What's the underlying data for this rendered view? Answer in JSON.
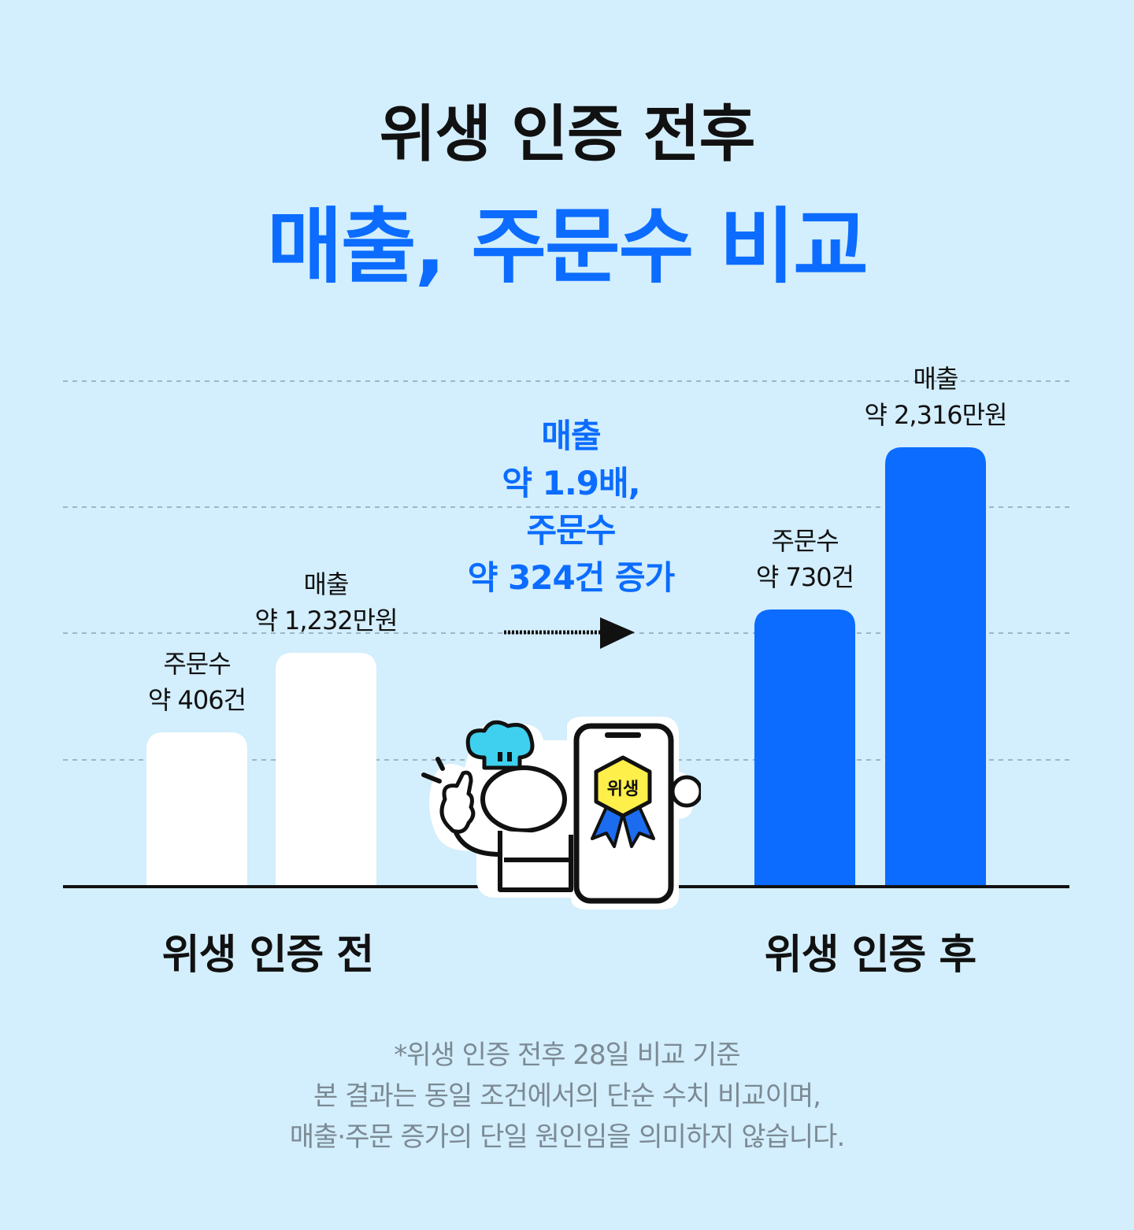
{
  "header": {
    "title_line1": "위생 인증 전후",
    "title_line2": "매출, 주문수 비교"
  },
  "colors": {
    "background": "#d3eefc",
    "accent_blue": "#0b6cff",
    "bar_before": "#ffffff",
    "text_dark": "#111111",
    "footnote_gray": "#7b8a94"
  },
  "chart_data": {
    "type": "bar",
    "categories": [
      "위생 인증 전",
      "위생 인증 후"
    ],
    "series": [
      {
        "name": "주문수",
        "unit": "건",
        "values": [
          406,
          730
        ],
        "value_labels": [
          "약 406건",
          "약 730건"
        ]
      },
      {
        "name": "매출",
        "unit": "만원",
        "values": [
          1232,
          2316
        ],
        "value_labels": [
          "약 1,232만원",
          "약 2,316만원"
        ]
      }
    ],
    "grid": true,
    "grid_style": "dashed",
    "axes_visible": false
  },
  "callout": {
    "lines": [
      "매출",
      "약 1.9배,",
      "주문수",
      "약 324건 증가"
    ]
  },
  "mascot": {
    "badge_text": "위생",
    "icon": "chef-with-phone-certificate-icon"
  },
  "footnote": {
    "lines": [
      "*위생 인증 전후 28일 비교 기준",
      "본 결과는 동일 조건에서의 단순 수치 비교이며,",
      "매출·주문 증가의 단일 원인임을 의미하지 않습니다."
    ]
  }
}
